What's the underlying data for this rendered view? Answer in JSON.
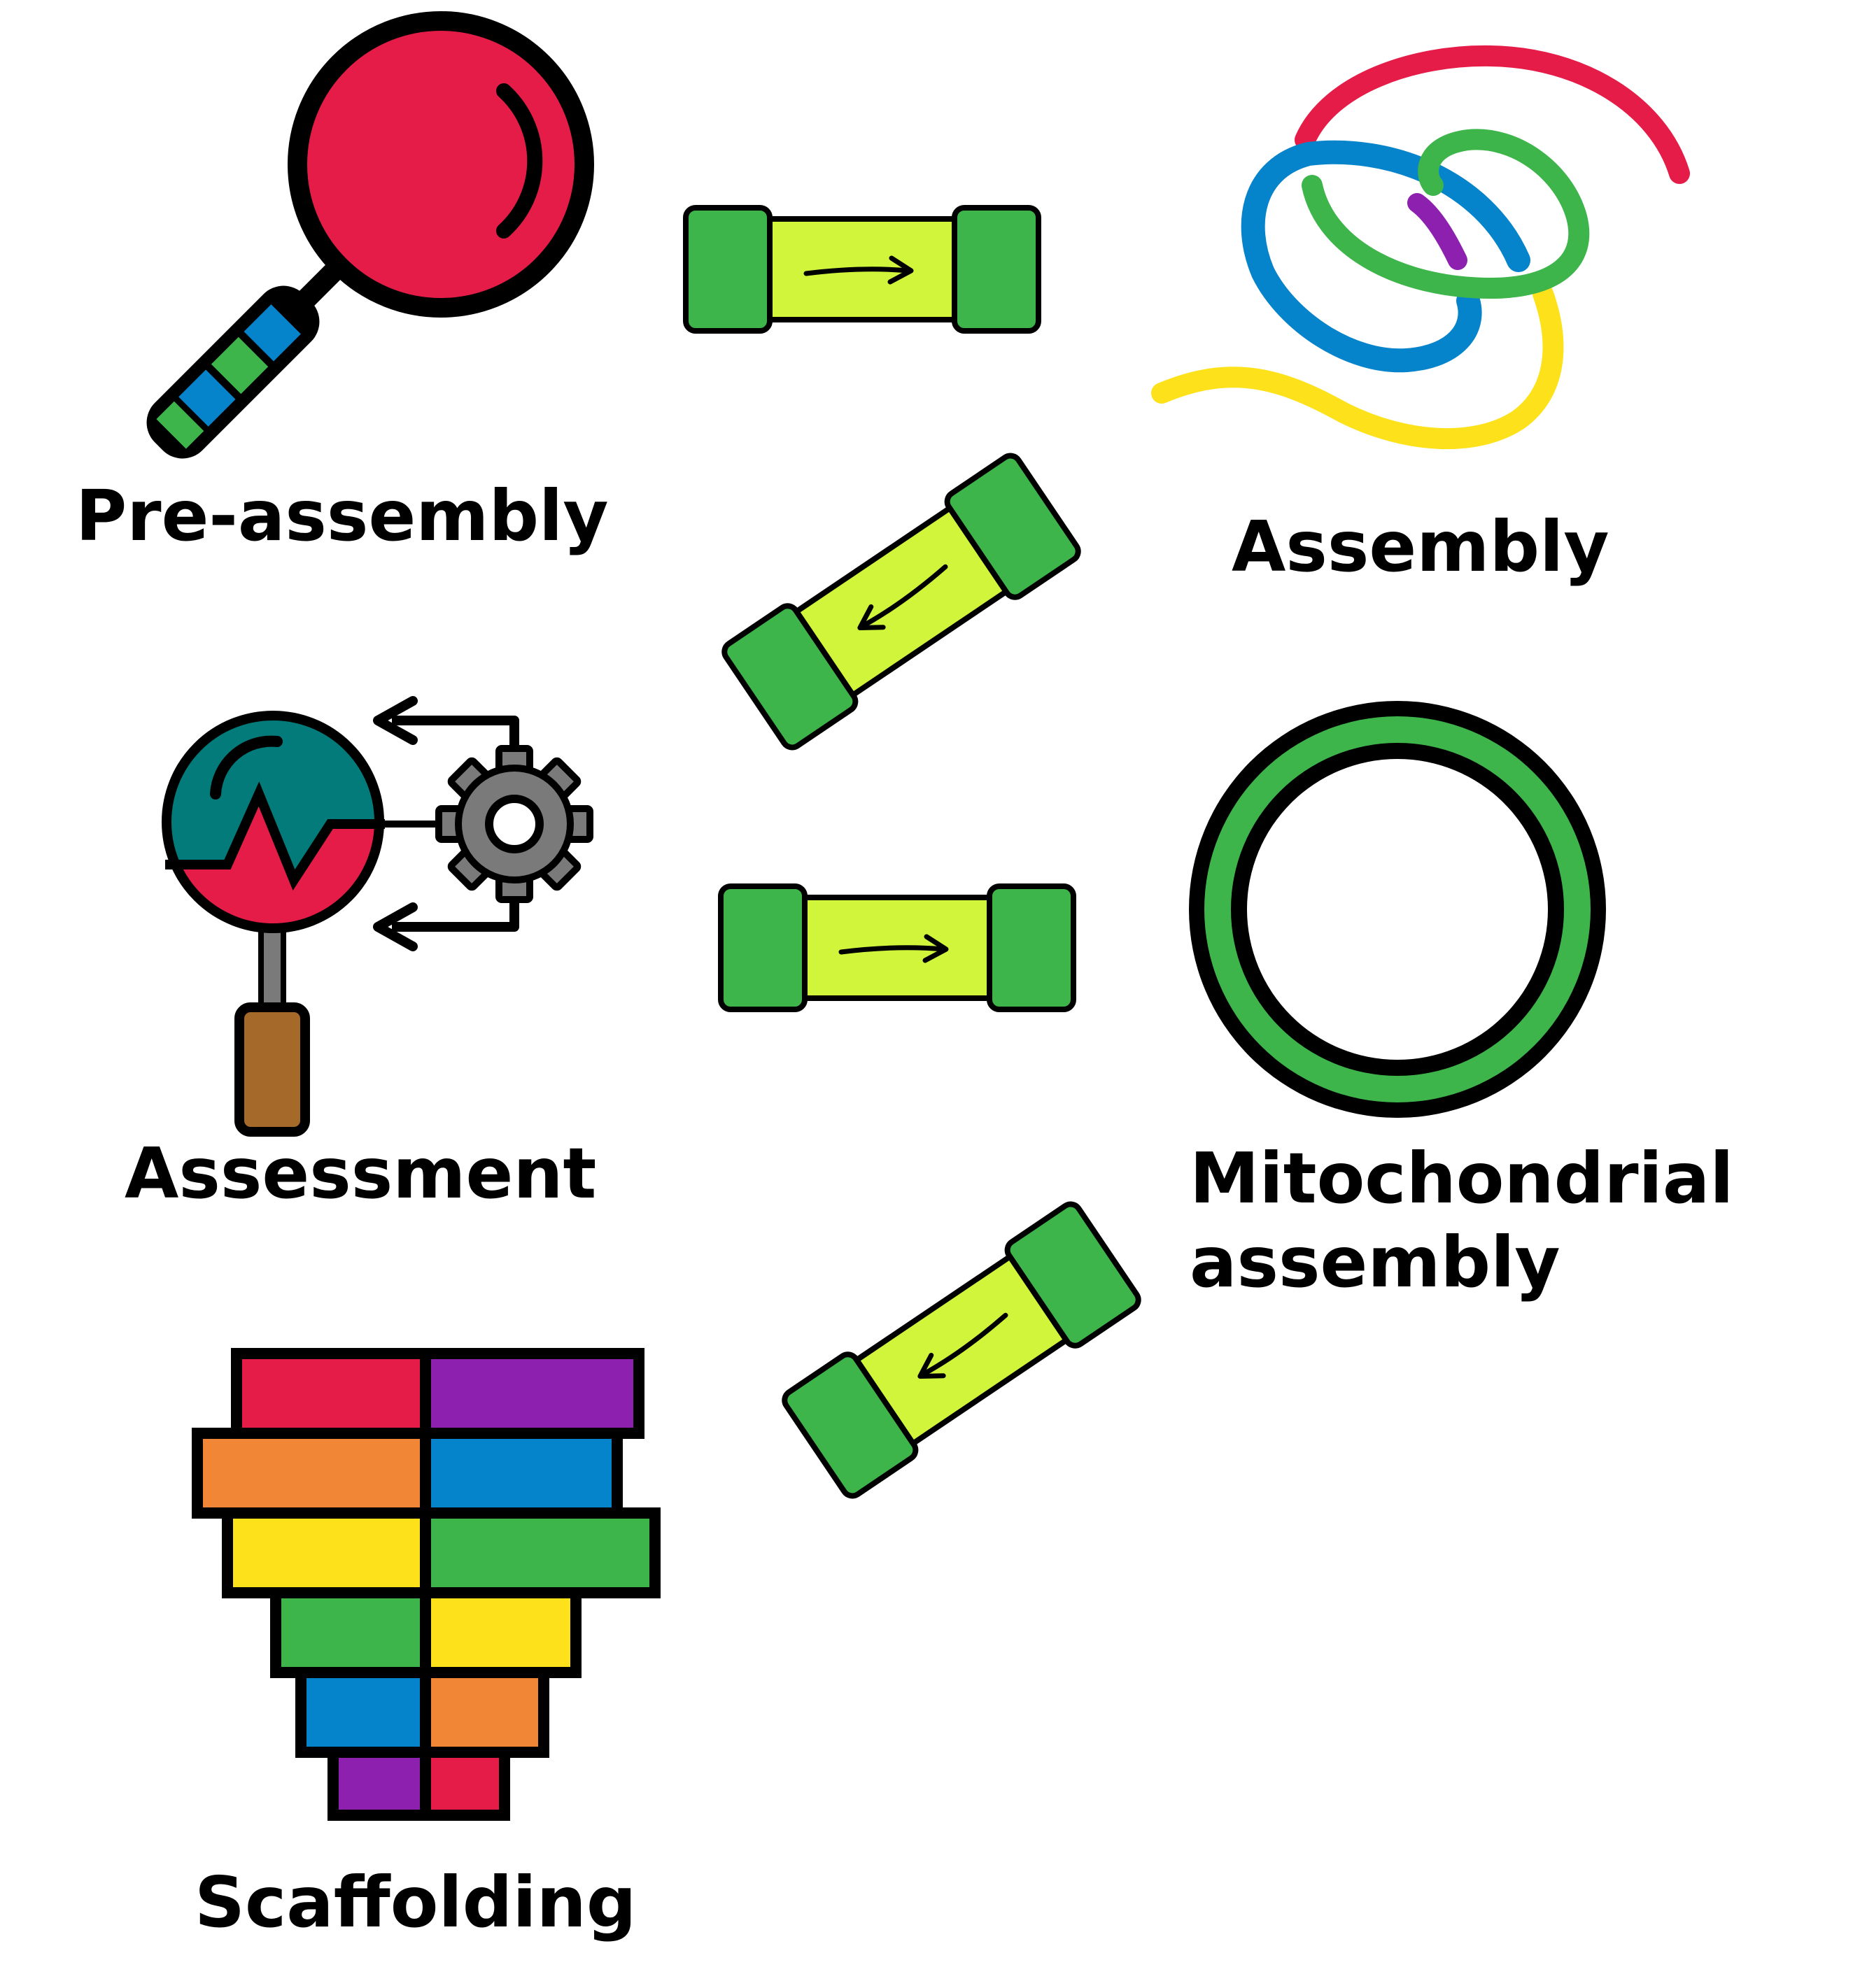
{
  "labels": {
    "pre_assembly": "Pre-assembly",
    "assembly": "Assembly",
    "assessment": "Assessment",
    "mitochondrial_line1": "Mitochondrial",
    "mitochondrial_line2": "assembly",
    "scaffolding": "Scaffolding"
  },
  "icons": {
    "pre_assembly": "magnifying-glass-icon",
    "assembly": "tangled-strands-icon",
    "assessment": "magnifier-gear-icon",
    "mitochondrial": "ring-icon",
    "scaffolding": "stacked-blocks-icon",
    "connector": "pipe-arrow-icon"
  },
  "colors": {
    "red": "#e61c48",
    "purple": "#8e20b0",
    "orange": "#f08636",
    "blue": "#0583cb",
    "yellow": "#fde21b",
    "green": "#3db54a",
    "lime": "#d0f53b",
    "teal": "#027b7a",
    "gray": "#7a7a7a",
    "brown": "#a56a2a"
  }
}
